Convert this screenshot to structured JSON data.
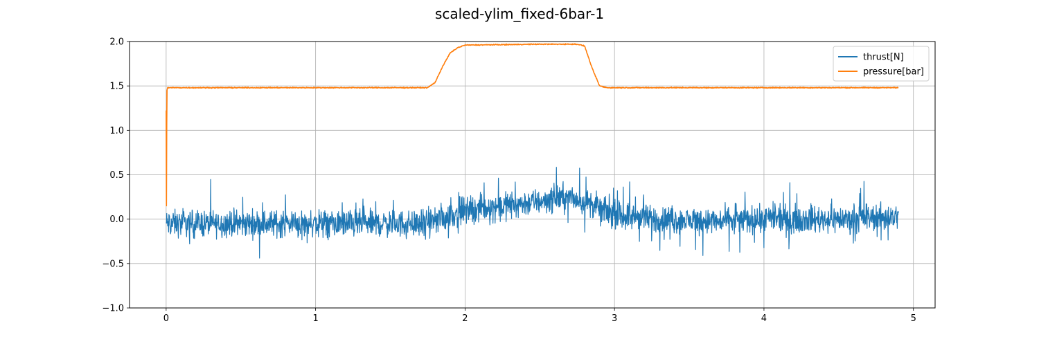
{
  "chart_data": {
    "type": "line",
    "title": "scaled-ylim_fixed-6bar-1",
    "xlabel": "",
    "ylabel": "",
    "xlim": [
      -0.245,
      5.145
    ],
    "ylim": [
      -1.0,
      2.0
    ],
    "xticks": [
      0,
      1,
      2,
      3,
      4,
      5
    ],
    "xtick_labels": [
      "0",
      "1",
      "2",
      "3",
      "4",
      "5"
    ],
    "yticks": [
      -1.0,
      -0.5,
      0.0,
      0.5,
      1.0,
      1.5,
      2.0
    ],
    "ytick_labels": [
      "−1.0",
      "−0.5",
      "0.0",
      "0.5",
      "1.0",
      "1.5",
      "2.0"
    ],
    "grid": true,
    "legend_position": "top-right",
    "series": [
      {
        "name": "thrust[N]",
        "color": "#1f77b4",
        "noise_amplitude": 0.22,
        "spike_amplitude": 0.32,
        "x": [
          0.0,
          0.25,
          0.5,
          0.75,
          1.0,
          1.25,
          1.5,
          1.75,
          2.0,
          2.25,
          2.5,
          2.65,
          2.8,
          3.0,
          3.25,
          3.5,
          3.75,
          4.0,
          4.25,
          4.5,
          4.75,
          4.9
        ],
        "y": [
          -0.05,
          -0.05,
          -0.05,
          -0.05,
          -0.05,
          -0.05,
          -0.05,
          -0.05,
          0.1,
          0.15,
          0.2,
          0.25,
          0.2,
          0.05,
          0.0,
          -0.02,
          -0.02,
          0.0,
          0.0,
          0.0,
          0.02,
          0.03
        ]
      },
      {
        "name": "pressure[bar]",
        "color": "#ff7f0e",
        "noise_amplitude": 0.008,
        "spike_amplitude": 0.0,
        "x": [
          0.0,
          0.002,
          0.005,
          0.01,
          0.5,
          1.0,
          1.5,
          1.75,
          1.8,
          1.85,
          1.9,
          1.95,
          2.0,
          2.5,
          2.75,
          2.8,
          2.85,
          2.9,
          2.95,
          3.5,
          4.0,
          4.5,
          4.9
        ],
        "y": [
          1.22,
          0.15,
          1.45,
          1.48,
          1.48,
          1.48,
          1.48,
          1.48,
          1.54,
          1.72,
          1.87,
          1.93,
          1.96,
          1.97,
          1.97,
          1.95,
          1.7,
          1.5,
          1.48,
          1.48,
          1.48,
          1.48,
          1.48
        ]
      }
    ]
  }
}
